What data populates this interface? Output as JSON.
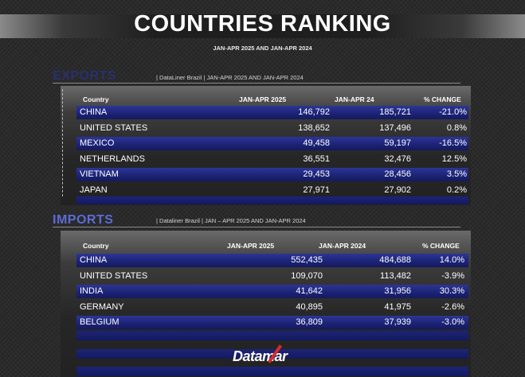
{
  "title": "COUNTRIES RANKING",
  "subtitle": "JAN-APR 2025 AND JAN-APR 2024",
  "exports": {
    "heading": "EXPORTS",
    "note": "|  DataLiner Brazil  | JAN-APR 2025 AND  JAN-APR 2024",
    "headers": [
      "Country",
      "JAN-APR 2025",
      "JAN-APR 24",
      "% CHANGE"
    ],
    "rows": [
      {
        "country": "CHINA",
        "v2025": "146,792",
        "v2024": "185,721",
        "change": "-21.0%"
      },
      {
        "country": "UNITED STATES",
        "v2025": "138,652",
        "v2024": "137,496",
        "change": "0.8%"
      },
      {
        "country": "MEXICO",
        "v2025": "49,458",
        "v2024": "59,197",
        "change": "-16.5%"
      },
      {
        "country": "NETHERLANDS",
        "v2025": "36,551",
        "v2024": "32,476",
        "change": "12.5%"
      },
      {
        "country": "VIETNAM",
        "v2025": "29,453",
        "v2024": "28,456",
        "change": "3.5%"
      },
      {
        "country": "JAPAN",
        "v2025": "27,971",
        "v2024": "27,902",
        "change": "0.2%"
      }
    ]
  },
  "imports": {
    "heading": "IMPORTS",
    "note": "|  Dataliner Brazil  | JAN – APR 2025 AND JAN-APR 2024",
    "headers": [
      "Country",
      "JAN-APR 2025",
      "JAN-APR 2024",
      "% CHANGE"
    ],
    "rows": [
      {
        "country": "CHINA",
        "v2025": "552,435",
        "v2024": "484,688",
        "change": "14.0%"
      },
      {
        "country": "UNITED STATES",
        "v2025": "109,070",
        "v2024": "113,482",
        "change": "-3.9%"
      },
      {
        "country": "INDIA",
        "v2025": "41,642",
        "v2024": "31,956",
        "change": "30.3%"
      },
      {
        "country": "GERMANY",
        "v2025": "40,895",
        "v2024": "41,975",
        "change": "-2.6%"
      },
      {
        "country": "BELGIUM",
        "v2025": "36,809",
        "v2024": "37,939",
        "change": "-3.0%"
      }
    ]
  },
  "logo": "Datamar",
  "colors": {
    "exports_heading": "#2a2f6e",
    "imports_heading": "#5c6bd6",
    "row_band": "#1d2477",
    "logo_accent": "#d62b2b"
  }
}
